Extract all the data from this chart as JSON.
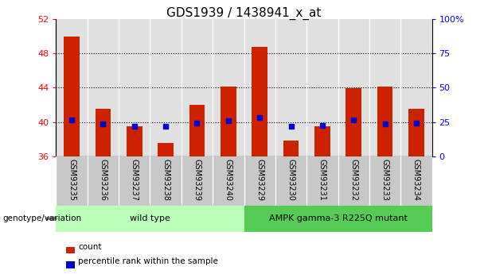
{
  "title": "GDS1939 / 1438941_x_at",
  "samples": [
    "GSM93235",
    "GSM93236",
    "GSM93237",
    "GSM93238",
    "GSM93239",
    "GSM93240",
    "GSM93229",
    "GSM93230",
    "GSM93231",
    "GSM93232",
    "GSM93233",
    "GSM93234"
  ],
  "counts": [
    50.0,
    41.5,
    39.5,
    37.5,
    42.0,
    44.1,
    48.8,
    37.8,
    39.5,
    43.9,
    44.1,
    41.5
  ],
  "percentiles": [
    40.2,
    39.8,
    39.5,
    39.5,
    39.9,
    40.1,
    40.5,
    39.5,
    39.6,
    40.2,
    39.8,
    39.9
  ],
  "ylim_left": [
    36,
    52
  ],
  "ylim_right": [
    0,
    100
  ],
  "yticks_left": [
    36,
    40,
    44,
    48,
    52
  ],
  "yticks_right": [
    0,
    25,
    50,
    75,
    100
  ],
  "ytick_labels_left": [
    "36",
    "40",
    "44",
    "48",
    "52"
  ],
  "ytick_labels_right": [
    "0",
    "25",
    "50",
    "75",
    "100%"
  ],
  "grid_values": [
    40,
    44,
    48
  ],
  "bar_color": "#cc2200",
  "dot_color": "#0000cc",
  "baseline": 36,
  "group1_label": "wild type",
  "group2_label": "AMPK gamma-3 R225Q mutant",
  "group1_count": 6,
  "group2_count": 6,
  "group1_color": "#bbffbb",
  "group2_color": "#55cc55",
  "genotype_label": "genotype/variation",
  "legend_count": "count",
  "legend_percentile": "percentile rank within the sample",
  "bg_color": "#ffffff",
  "plot_bg_color": "#e0e0e0",
  "tick_bg_color": "#c8c8c8",
  "bar_width": 0.5
}
